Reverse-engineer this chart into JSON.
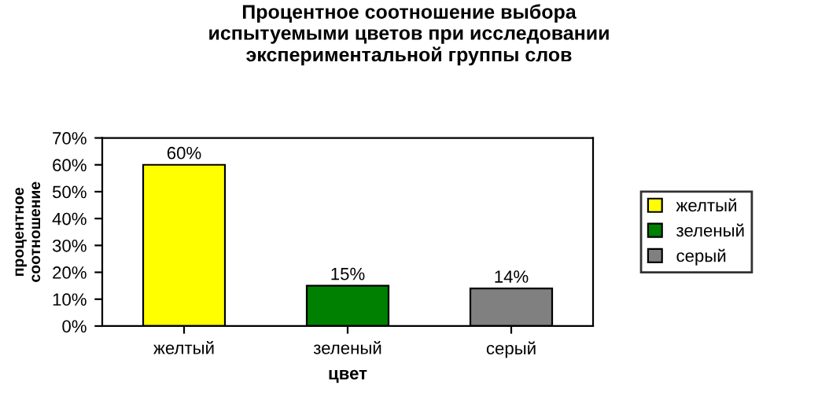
{
  "chart_data": {
    "type": "bar",
    "title": "Процентное соотношение выбора\nиспытуемыми цветов при исследовании\nэкспериментальной группы слов",
    "xlabel": "цвет",
    "ylabel": "процентное\nсоотношение",
    "categories": [
      "желтый",
      "зеленый",
      "серый"
    ],
    "series": [
      {
        "name": "желтый",
        "color": "#ffff00",
        "values": [
          60,
          null,
          null
        ],
        "value_labels": [
          "60%",
          null,
          null
        ]
      },
      {
        "name": "зеленый",
        "color": "#008000",
        "values": [
          null,
          15,
          null
        ],
        "value_labels": [
          null,
          "15%",
          null
        ]
      },
      {
        "name": "серый",
        "color": "#808080",
        "values": [
          null,
          null,
          14
        ],
        "value_labels": [
          null,
          null,
          "14%"
        ]
      }
    ],
    "ylim": [
      0,
      70
    ],
    "yticks": [
      {
        "value": 0,
        "label": "0%"
      },
      {
        "value": 10,
        "label": "10%"
      },
      {
        "value": 20,
        "label": "20%"
      },
      {
        "value": 30,
        "label": "30%"
      },
      {
        "value": 40,
        "label": "40%"
      },
      {
        "value": 50,
        "label": "50%"
      },
      {
        "value": 60,
        "label": "60%"
      },
      {
        "value": 70,
        "label": "70%"
      }
    ],
    "grid": false,
    "legend": "right"
  }
}
